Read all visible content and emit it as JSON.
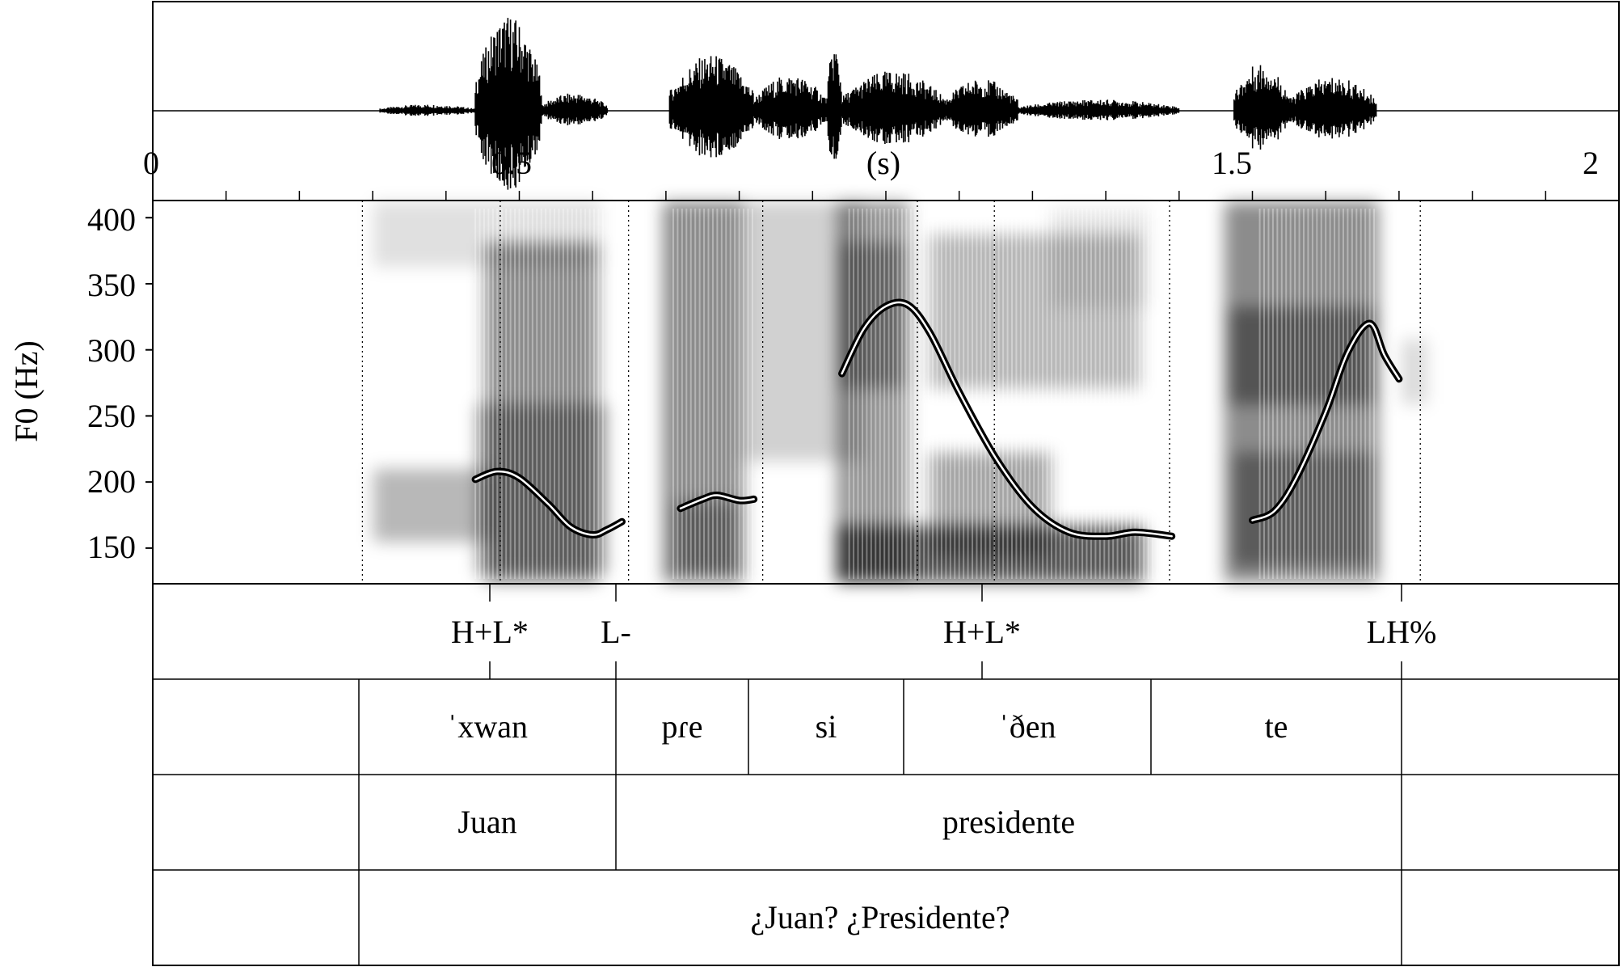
{
  "time_axis": {
    "tick_labels": [
      "0",
      "0.5",
      "1.5",
      "2"
    ],
    "unit_label": "(s)",
    "range_s": [
      0,
      2.0
    ]
  },
  "f0_axis": {
    "label": "F0 (Hz)",
    "tick_labels": [
      "400",
      "350",
      "300",
      "250",
      "200",
      "150"
    ],
    "range_hz": [
      123,
      413
    ]
  },
  "tiers": {
    "tones": [
      {
        "label": "H+L*",
        "time_s": 0.474
      },
      {
        "label": "L-",
        "time_s": 0.649
      },
      {
        "label": "H+L*",
        "time_s": 1.148
      },
      {
        "label": "LH%",
        "time_s": 1.729
      }
    ],
    "syllables": [
      {
        "label": "ˈxwan",
        "start_s": 0.286,
        "end_s": 0.649
      },
      {
        "label": "pɾe",
        "start_s": 0.649,
        "end_s": 0.832
      },
      {
        "label": "si",
        "start_s": 0.832,
        "end_s": 1.043
      },
      {
        "label": "ˈðen",
        "start_s": 1.043,
        "end_s": 1.387
      },
      {
        "label": "te",
        "start_s": 1.387,
        "end_s": 1.729
      }
    ],
    "words": [
      {
        "label": "Juan",
        "start_s": 0.286,
        "end_s": 0.649
      },
      {
        "label": "presidente",
        "start_s": 0.649,
        "end_s": 1.729
      }
    ],
    "sentence": [
      {
        "label": "¿Juan? ¿Presidente?",
        "start_s": 0.286,
        "end_s": 1.729
      }
    ]
  },
  "chart_data": {
    "type": "line",
    "xlabel": "(s)",
    "ylabel": "F0 (Hz)",
    "xlim": [
      0,
      2.0
    ],
    "ylim": [
      123,
      413
    ],
    "series": [
      {
        "x": [
          0.44,
          0.47,
          0.5,
          0.54,
          0.57,
          0.6,
          0.62,
          0.64
        ],
        "y": [
          202,
          208,
          203,
          183,
          166,
          160,
          164,
          170
        ]
      },
      {
        "x": [
          0.72,
          0.75,
          0.77,
          0.8,
          0.82
        ],
        "y": [
          180,
          187,
          190,
          186,
          187
        ]
      },
      {
        "x": [
          0.94,
          0.97,
          1.0,
          1.03,
          1.06,
          1.1,
          1.15,
          1.2,
          1.25,
          1.3,
          1.34,
          1.39
        ],
        "y": [
          282,
          316,
          333,
          334,
          313,
          268,
          218,
          181,
          162,
          159,
          162,
          159
        ]
      },
      {
        "x": [
          1.5,
          1.53,
          1.56,
          1.6,
          1.63,
          1.66,
          1.68,
          1.7
        ],
        "y": [
          171,
          178,
          203,
          253,
          298,
          320,
          296,
          278
        ]
      }
    ]
  }
}
